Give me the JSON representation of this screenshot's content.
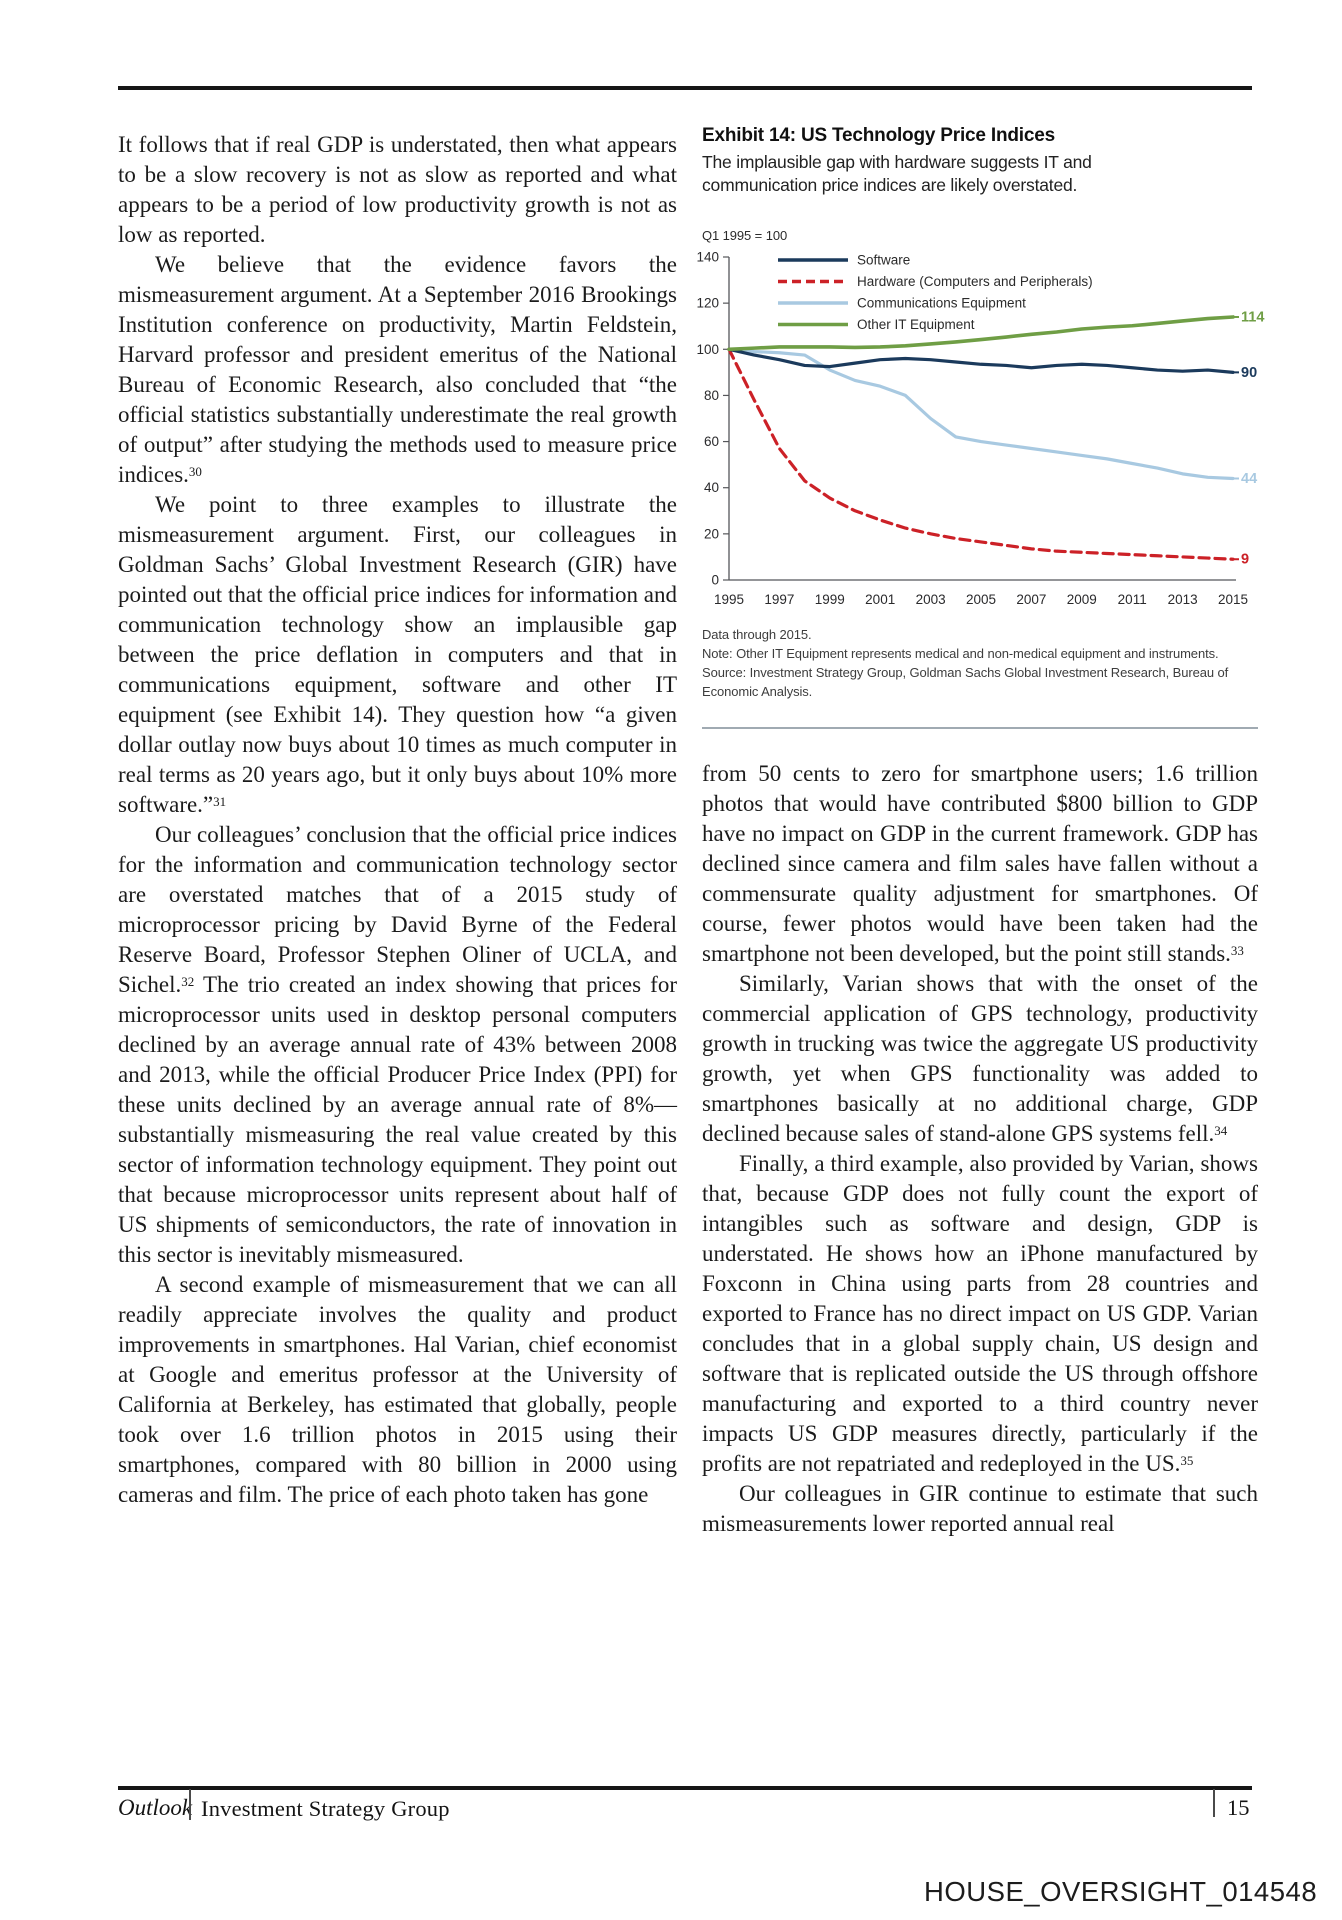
{
  "left_column": {
    "paragraphs": [
      {
        "segments": [
          {
            "t": "It follows that if real GDP is understated, then what appears to be a slow recovery is not as slow as reported and what appears to be a period of low productivity growth is not as low as reported."
          }
        ]
      },
      {
        "segments": [
          {
            "t": "We believe that the evidence favors the mismeasurement argument. At a September 2016 Brookings Institution conference on productivity, Martin Feldstein, Harvard professor and president emeritus of the National Bureau of Economic Research, also concluded that “the official statistics substantially underestimate the real growth of output” after studying the methods used to measure price indices."
          },
          {
            "s": "30"
          }
        ]
      },
      {
        "segments": [
          {
            "t": "We point to three examples to illustrate the mismeasurement argument. First, our colleagues in Goldman Sachs’ Global Investment Research (GIR) have pointed out that the official price indices for information and communication technology show an implausible gap between the price deflation in computers and that in communications equipment, software and other IT equipment (see Exhibit 14). They question how “a given dollar outlay now buys about 10 times as much computer in real terms as 20 years ago, but it only buys about 10% more software.”"
          },
          {
            "s": "31"
          }
        ]
      },
      {
        "segments": [
          {
            "t": "Our colleagues’ conclusion that the official price indices for the information and communication technology sector are overstated matches that of a 2015 study of microprocessor pricing by David Byrne of the Federal Reserve Board, Professor Stephen Oliner of UCLA, and Sichel."
          },
          {
            "s": "32"
          },
          {
            "t": " The trio created an index showing that prices for microprocessor units used in desktop personal computers declined by an average annual rate of 43% between 2008 and 2013, while the official Producer Price Index (PPI) for these units declined by an average annual rate of 8%—substantially mismeasuring the real value created by this sector of information technology equipment. They point out that because microprocessor units represent about half of US shipments of semiconductors, the rate of innovation in this sector is inevitably mismeasured."
          }
        ]
      },
      {
        "segments": [
          {
            "t": "A second example of mismeasurement that we can all readily appreciate involves the quality and product improvements in smartphones. Hal Varian, chief economist at Google and emeritus professor at the University of California at Berkeley, has estimated that globally, people took over 1.6 trillion photos in 2015 using their smartphones, compared with 80 billion in 2000 using cameras and film. The price of each photo taken has gone"
          }
        ]
      }
    ]
  },
  "right_column": {
    "paragraphs": [
      {
        "segments": [
          {
            "t": "from 50 cents to zero for smartphone users; 1.6 trillion photos that would have contributed $800 billion to GDP have no impact on GDP in the current framework. GDP has declined since camera and film sales have fallen without a commensurate quality adjustment for smartphones. Of course, fewer photos would have been taken had the smartphone not been developed, but the point still stands."
          },
          {
            "s": "33"
          }
        ]
      },
      {
        "segments": [
          {
            "t": "Similarly, Varian shows that with the onset of the commercial application of GPS technology, productivity growth in trucking was twice the aggregate US productivity growth, yet when GPS functionality was added to smartphones basically at no additional charge, GDP declined because sales of stand-alone GPS systems fell."
          },
          {
            "s": "34"
          }
        ]
      },
      {
        "segments": [
          {
            "t": "Finally, a third example, also provided by Varian, shows that, because GDP does not fully count the export of intangibles such as software and design, GDP is understated. He shows how an iPhone manufactured by Foxconn in China using parts from 28 countries and exported to France has no direct impact on US GDP. Varian concludes that in a global supply chain, US design and software that is replicated outside the US through offshore manufacturing and exported to a third country never impacts US GDP measures directly, particularly if the profits are not repatriated and redeployed in the US."
          },
          {
            "s": "35"
          }
        ]
      },
      {
        "segments": [
          {
            "t": "Our colleagues in GIR continue to estimate that such mismeasurements lower reported annual real"
          }
        ]
      }
    ]
  },
  "exhibit": {
    "title": "Exhibit 14: US Technology Price Indices",
    "subtitle": "The implausible gap with hardware suggests IT and communication price indices are likely overstated.",
    "unit_note": "Q1 1995 = 100",
    "notes": [
      "Data through 2015.",
      "Note: Other IT Equipment represents medical and non-medical equipment and instruments.",
      "Source: Investment Strategy Group, Goldman Sachs Global Investment Research, Bureau of Economic Analysis."
    ]
  },
  "chart_data": {
    "type": "line",
    "title": "Exhibit 14: US Technology Price Indices",
    "subtitle": "The implausible gap with hardware suggests IT and communication price indices are likely overstated.",
    "unit": "Q1 1995 = 100",
    "grid": false,
    "legend_position": "top-inside",
    "ylim": [
      0,
      140
    ],
    "y_ticks": [
      0,
      20,
      40,
      60,
      80,
      100,
      120,
      140
    ],
    "x": [
      1995,
      1996,
      1997,
      1998,
      1999,
      2000,
      2001,
      2002,
      2003,
      2004,
      2005,
      2006,
      2007,
      2008,
      2009,
      2010,
      2011,
      2012,
      2013,
      2014,
      2015
    ],
    "x_tick_labels": [
      1995,
      1997,
      1999,
      2001,
      2003,
      2005,
      2007,
      2009,
      2011,
      2013,
      2015
    ],
    "series": [
      {
        "name": "Software",
        "color": "#1b3a5c",
        "style": "solid",
        "end_label": "90",
        "values": [
          100,
          97.5,
          95.5,
          93,
          92.5,
          94,
          95.5,
          96,
          95.5,
          94.5,
          93.5,
          93,
          92,
          93,
          93.5,
          93,
          92,
          91,
          90.5,
          91,
          90
        ]
      },
      {
        "name": "Hardware (Computers and Peripherals)",
        "color": "#cc2127",
        "style": "dashed",
        "end_label": "9",
        "values": [
          100,
          78,
          57,
          43,
          35.5,
          30,
          26,
          22.5,
          20,
          18,
          16.5,
          15,
          13.5,
          12.5,
          12,
          11.5,
          11,
          10.5,
          10,
          9.5,
          9
        ]
      },
      {
        "name": "Communications Equipment",
        "color": "#a8c9e1",
        "style": "solid",
        "end_label": "44",
        "values": [
          100,
          99,
          98.5,
          97.5,
          91,
          86.5,
          84,
          80,
          70,
          62,
          60,
          58.5,
          57,
          55.5,
          54,
          52.5,
          50.5,
          48.5,
          46,
          44.5,
          44
        ]
      },
      {
        "name": "Other IT Equipment",
        "color": "#6f9e45",
        "style": "solid",
        "end_label": "114",
        "values": [
          100,
          100.5,
          101,
          101,
          101,
          100.8,
          101,
          101.5,
          102.3,
          103.2,
          104.2,
          105.3,
          106.5,
          107.5,
          108.8,
          109.6,
          110.2,
          111.2,
          112.3,
          113.3,
          114
        ]
      }
    ],
    "footnotes": [
      "Data through 2015.",
      "Note: Other IT Equipment represents medical and non-medical equipment and instruments.",
      "Source: Investment Strategy Group, Goldman Sachs Global Investment Research, Bureau of Economic Analysis."
    ]
  },
  "footer": {
    "brand": "Outlook",
    "group": "Investment Strategy Group",
    "page_number": "15"
  },
  "watermark": "HOUSE_OVERSIGHT_014548"
}
